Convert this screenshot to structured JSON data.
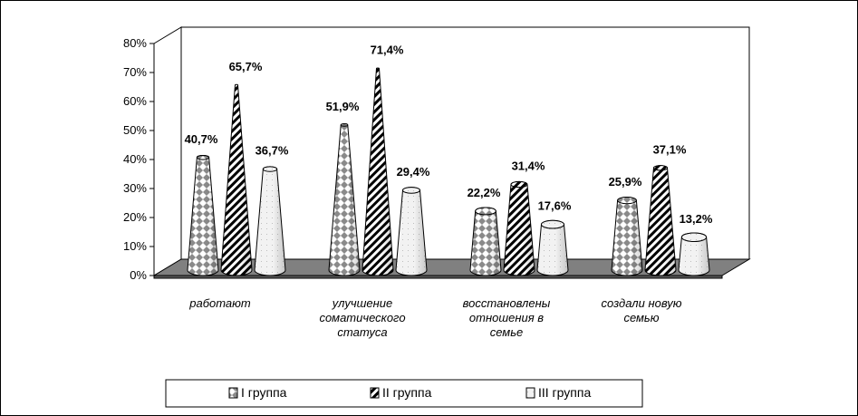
{
  "chart_data": {
    "type": "bar",
    "style": "3d-cone",
    "categories": [
      [
        "работают"
      ],
      [
        "улучшение",
        "соматического",
        "статуса"
      ],
      [
        "восстановлены",
        "отношения в",
        "семье"
      ],
      [
        "создали новую",
        "семью"
      ]
    ],
    "series": [
      {
        "name": "I группа",
        "values": [
          40.7,
          51.9,
          22.2,
          25.9
        ],
        "labels": [
          "40,7%",
          "51,9%",
          "22,2%",
          "25,9%"
        ],
        "pattern": "diamond-check"
      },
      {
        "name": "II группа",
        "values": [
          65.7,
          71.4,
          31.4,
          37.1
        ],
        "labels": [
          "65,7%",
          "71,4%",
          "31,4%",
          "37,1%"
        ],
        "pattern": "diagonal-hatch"
      },
      {
        "name": "III группа",
        "values": [
          36.7,
          29.4,
          17.6,
          13.2
        ],
        "labels": [
          "36,7%",
          "29,4%",
          "17,6%",
          "13,2%"
        ],
        "pattern": "solid-light"
      }
    ],
    "y_ticks": [
      "0%",
      "10%",
      "20%",
      "30%",
      "40%",
      "50%",
      "60%",
      "70%",
      "80%"
    ],
    "ylim": [
      0,
      80
    ],
    "unit": "%",
    "grid": false,
    "legend_position": "bottom",
    "colors": {
      "floor": "#808080",
      "wall": "#ffffff",
      "outline": "#000000",
      "light_fill": "#f0f0f0"
    }
  }
}
